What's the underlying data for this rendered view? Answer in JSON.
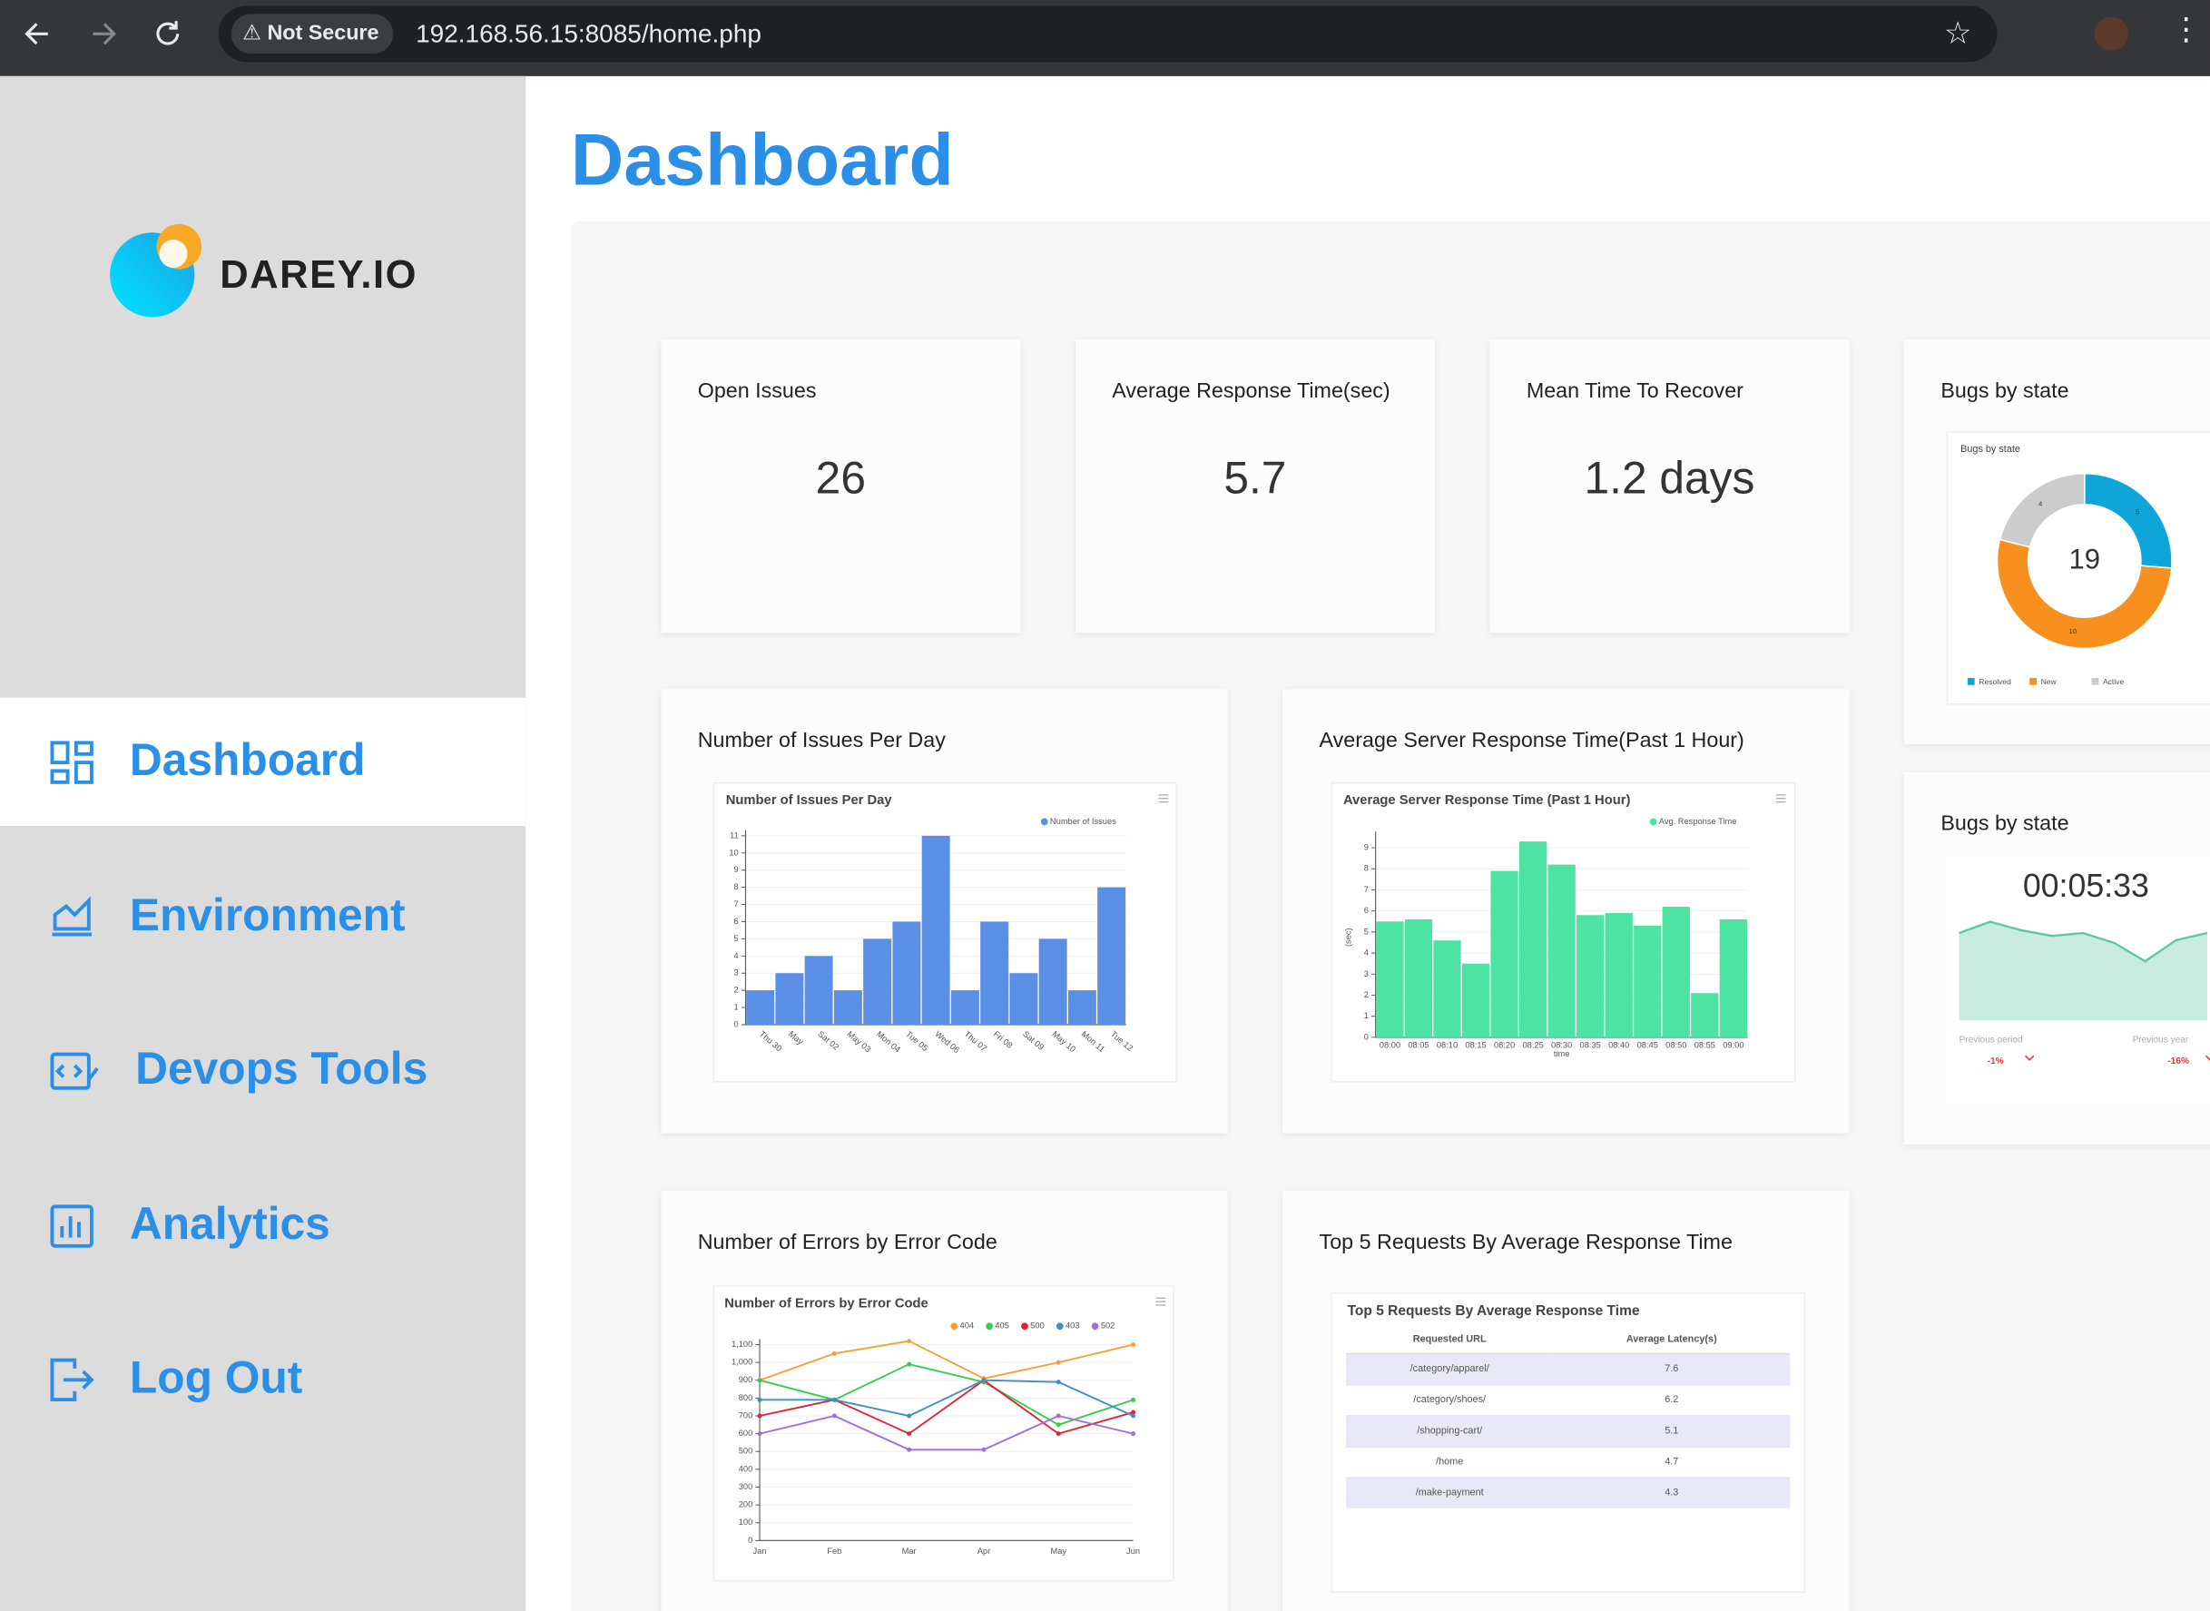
{
  "browser": {
    "security": "Not Secure",
    "url": "192.168.56.15:8085/home.php"
  },
  "sidebar": {
    "brand": "DAREY.IO",
    "nav": [
      "Dashboard",
      "Environment",
      "Devops Tools",
      "Analytics",
      "Log Out"
    ]
  },
  "page_title": "Dashboard",
  "kpis": [
    {
      "label": "Open Issues",
      "value": "26"
    },
    {
      "label": "Average Response Time(sec)",
      "value": "5.7"
    },
    {
      "label": "Mean Time To Recover",
      "value": "1.2 days"
    }
  ],
  "bugs_donut": {
    "card_title": "Bugs by state",
    "type": "donut",
    "title": "Bugs by state",
    "center": "19",
    "slices": [
      {
        "name": "Resolved",
        "value": 5,
        "color": "#0ea5d8"
      },
      {
        "name": "New",
        "value": 10,
        "color": "#f7901e"
      },
      {
        "name": "Active",
        "value": 4,
        "color": "#cccccc"
      }
    ]
  },
  "bugs_trend": {
    "card_title": "Bugs by state",
    "type": "area",
    "timer": "00:05:33",
    "color": "#5fc6a0",
    "values": [
      22,
      30,
      24,
      20,
      22,
      15,
      2,
      17,
      22
    ],
    "comparisons": [
      {
        "label": "Previous period",
        "change": "-1%"
      },
      {
        "label": "Previous year",
        "change": "-16%"
      }
    ]
  },
  "issues_per_day": {
    "card_title": "Number of Issues Per Day",
    "type": "bar",
    "title": "Number of Issues Per Day",
    "series_name": "Number of Issues",
    "color": "#5b8fe6",
    "categories": [
      "Thu 30",
      "May",
      "Sat 02",
      "May 03",
      "Mon 04",
      "Tue 05",
      "Wed 06",
      "Thu 07",
      "Fri 08",
      "Sat 09",
      "May 10",
      "Mon 11",
      "Tue 12"
    ],
    "values": [
      2,
      3,
      4,
      2,
      5,
      6,
      11,
      2,
      6,
      3,
      5,
      2,
      8
    ],
    "ylim": [
      0,
      11
    ],
    "yticks": [
      0,
      1,
      2,
      3,
      4,
      5,
      6,
      7,
      8,
      9,
      10,
      11
    ]
  },
  "response_time": {
    "card_title": "Average Server Response Time(Past 1 Hour)",
    "type": "bar",
    "title": "Average Server Response Time (Past 1 Hour)",
    "series_name": "Avg. Response Time",
    "color": "#4de3a3",
    "x_label": "time",
    "y_label": "(sec)",
    "categories": [
      "08:00",
      "08:05",
      "08:10",
      "08:15",
      "08:20",
      "08:25",
      "08:30",
      "08:35",
      "08:40",
      "08:45",
      "08:50",
      "08:55",
      "09:00"
    ],
    "values": [
      5.5,
      5.6,
      4.6,
      3.5,
      7.9,
      9.3,
      8.2,
      5.8,
      5.9,
      5.3,
      6.2,
      2.1,
      5.6
    ],
    "ylim": [
      0,
      9.5
    ],
    "yticks": [
      0,
      1,
      2,
      3,
      4,
      5,
      6,
      7,
      8,
      9
    ]
  },
  "errors_by_code": {
    "card_title": "Number of Errors by Error Code",
    "type": "line",
    "title": "Number of Errors by Error Code",
    "categories": [
      "Jan",
      "Feb",
      "Mar",
      "Apr",
      "May",
      "Jun"
    ],
    "series": [
      {
        "name": "404",
        "color": "#f7a032",
        "values": [
          900,
          1050,
          1120,
          910,
          1000,
          1100
        ]
      },
      {
        "name": "405",
        "color": "#3bc94f",
        "values": [
          900,
          790,
          990,
          890,
          650,
          790
        ]
      },
      {
        "name": "500",
        "color": "#e0242f",
        "values": [
          700,
          790,
          600,
          900,
          600,
          720
        ]
      },
      {
        "name": "403",
        "color": "#3d8fc4",
        "values": [
          790,
          790,
          700,
          900,
          890,
          700
        ]
      },
      {
        "name": "502",
        "color": "#a070d8",
        "values": [
          600,
          700,
          510,
          510,
          700,
          600
        ]
      }
    ],
    "ylim": [
      0,
      1100
    ],
    "yticks": [
      0,
      100,
      200,
      300,
      400,
      500,
      600,
      700,
      800,
      900,
      {
        "value": 1000,
        "label": "1,000"
      },
      {
        "value": 1100,
        "label": "1,100"
      }
    ]
  },
  "top_requests": {
    "card_title": "Top 5 Requests By Average Response Time",
    "title": "Top 5 Requests By Average Response Time",
    "headers": [
      "Requested URL",
      "Average Latency(s)"
    ],
    "rows": [
      [
        "/category/apparel/",
        "7.6"
      ],
      [
        "/category/shoes/",
        "6.2"
      ],
      [
        "/shopping-cart/",
        "5.1"
      ],
      [
        "/home",
        "4.7"
      ],
      [
        "/make-payment",
        "4.3"
      ]
    ]
  }
}
